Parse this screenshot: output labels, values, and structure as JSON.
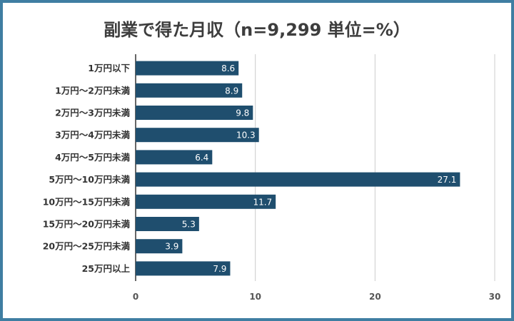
{
  "chart_data": {
    "type": "bar",
    "orientation": "horizontal",
    "title": "副業で得た月収（n=9,299 単位=%）",
    "categories": [
      "1万円以下",
      "1万円〜2万円未満",
      "2万円〜3万円未満",
      "3万円〜4万円未満",
      "4万円〜5万円未満",
      "5万円〜10万円未満",
      "10万円〜15万円未満",
      "15万円〜20万円未満",
      "20万円〜25万円未満",
      "25万円以上"
    ],
    "values": [
      8.6,
      8.9,
      9.8,
      10.3,
      6.4,
      27.1,
      11.7,
      5.3,
      3.9,
      7.9
    ],
    "value_labels": [
      "8.6",
      "8.9",
      "9.8",
      "10.3",
      "6.4",
      "27.1",
      "11.7",
      "5.3",
      "3.9",
      "7.9"
    ],
    "xlim": [
      0,
      30
    ],
    "xticks": [
      "0",
      "10",
      "20",
      "30"
    ],
    "xtick_values": [
      0,
      10,
      20,
      30
    ],
    "grid": true,
    "legend": "none",
    "bar_color": "#1f4e6e",
    "frame_color": "#3f7ea2"
  }
}
